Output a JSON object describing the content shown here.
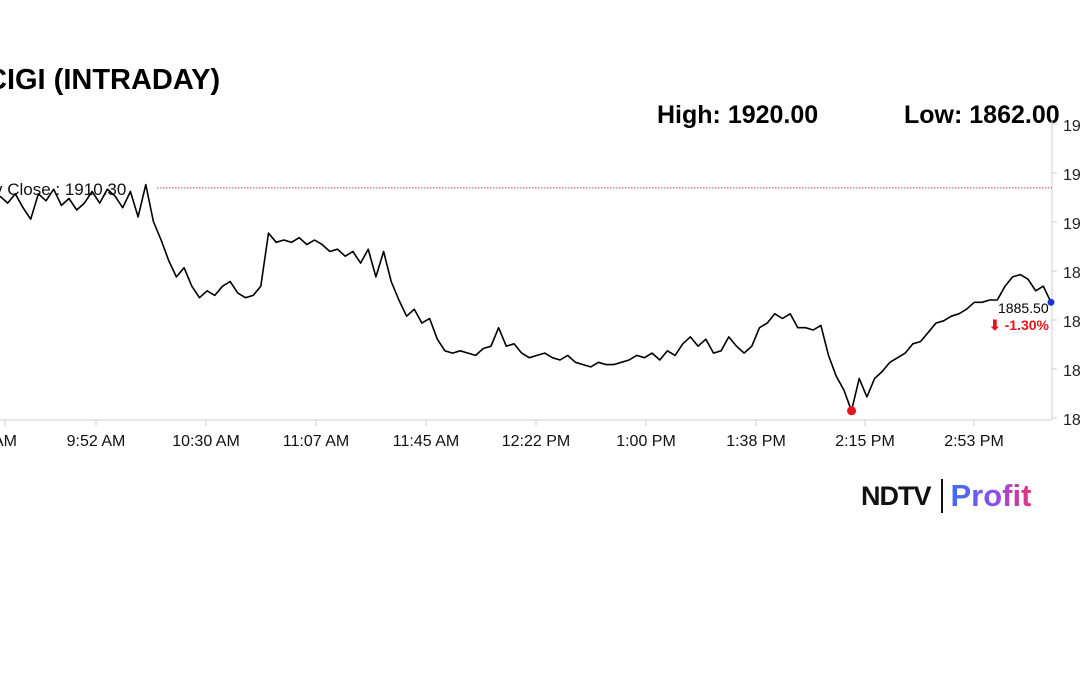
{
  "header": {
    "title": "CIGI (INTRADAY)",
    "high": "High: 1920.00",
    "low": "Low: 1862.00"
  },
  "logo": {
    "brand": "NDTV",
    "product": "Profit"
  },
  "colors": {
    "line": "#000000",
    "prev_close": "#cc0000",
    "low_dot": "#e8121b",
    "last_dot": "#2233cc",
    "change_neg": "#e8121b"
  },
  "chart_data": {
    "type": "line",
    "x_tick_labels": [
      "AM",
      "9:52 AM",
      "10:30 AM",
      "11:07 AM",
      "11:45 AM",
      "12:22 PM",
      "1:00 PM",
      "1:38 PM",
      "2:15 PM",
      "2:53 PM"
    ],
    "y_tick_labels": [
      "19",
      "19",
      "19",
      "18",
      "18",
      "18",
      "18"
    ],
    "ylim": [
      1860,
      1925
    ],
    "prev_close": 1910.3,
    "prev_close_label": "v Close : 1910.30",
    "last_price": "1885.50",
    "change": "⬇ -1.30%",
    "series": [
      {
        "values": [
          1908.5,
          1907,
          1909,
          1906,
          1903.5,
          1909,
          1907.5,
          1910,
          1906.5,
          1908,
          1905.5,
          1907,
          1909.5,
          1907,
          1910,
          1908.5,
          1906,
          1909.5,
          1904,
          1911,
          1903,
          1899,
          1894.5,
          1891,
          1893,
          1889,
          1886.5,
          1888,
          1887,
          1889,
          1890,
          1887.5,
          1886.5,
          1887,
          1889,
          1900.5,
          1898.5,
          1899,
          1898.5,
          1899.5,
          1898,
          1899,
          1898,
          1896.5,
          1897,
          1895.5,
          1896.5,
          1894,
          1897,
          1891,
          1896.5,
          1890,
          1886,
          1882.5,
          1884,
          1881,
          1882,
          1877.5,
          1875,
          1874.5,
          1875,
          1874.5,
          1874,
          1875.5,
          1876,
          1880,
          1876,
          1876.5,
          1874.5,
          1873.5,
          1874,
          1874.5,
          1873.5,
          1873,
          1874,
          1872.5,
          1872,
          1871.5,
          1872.5,
          1872,
          1872,
          1872.5,
          1873,
          1874,
          1873.5,
          1874.5,
          1873,
          1875,
          1874,
          1876.5,
          1878,
          1876,
          1877.5,
          1874.5,
          1875,
          1878,
          1876,
          1874.5,
          1876,
          1880,
          1881,
          1883,
          1882,
          1883,
          1880,
          1880,
          1879.5,
          1880.5,
          1874,
          1869.5,
          1866.5,
          1862,
          1869,
          1865,
          1869,
          1870.5,
          1872.5,
          1873.5,
          1874.5,
          1876.5,
          1877,
          1879,
          1881,
          1881.5,
          1882.5,
          1883,
          1884,
          1885.5,
          1885.5,
          1886,
          1886,
          1889,
          1891,
          1891.5,
          1890.5,
          1888,
          1889,
          1885.5
        ]
      }
    ]
  }
}
